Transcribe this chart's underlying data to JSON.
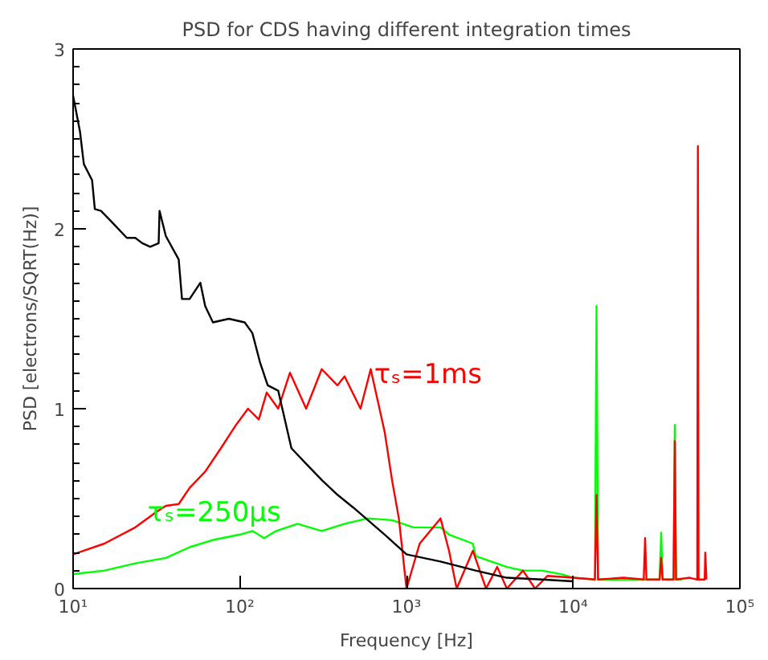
{
  "chart_data": {
    "type": "line",
    "title": "PSD for CDS having different integration times",
    "xlabel": "Frequency [Hz]",
    "ylabel": "PSD [electrons/SQRT(Hz)]",
    "log": "x",
    "xlim": [
      10,
      100000
    ],
    "xticks": [
      {
        "value": 10,
        "label": "10¹"
      },
      {
        "value": 100,
        "label": "10²"
      },
      {
        "value": 1000,
        "label": "10³"
      },
      {
        "value": 10000,
        "label": "10⁴"
      },
      {
        "value": 100000,
        "label": "10⁵"
      }
    ],
    "ylim": [
      0,
      3
    ],
    "yticks": [
      0,
      1,
      2,
      3
    ],
    "grid": false,
    "marker": "none",
    "line_style": "solid",
    "series": [
      {
        "color": "#000000",
        "x": [
          10,
          11,
          11.6,
          13,
          13.5,
          14.7,
          17,
          21,
          23.6,
          26,
          29,
          32.6,
          33,
          36,
          43,
          45,
          50,
          58,
          62,
          69,
          86,
          107,
          119,
          132,
          147,
          170,
          204,
          252,
          313,
          387,
          480,
          740,
          1000,
          1600,
          2600,
          4000,
          6500,
          10000
        ],
        "values": [
          2.74,
          2.54,
          2.36,
          2.27,
          2.11,
          2.1,
          2.04,
          1.95,
          1.95,
          1.92,
          1.9,
          1.92,
          2.1,
          1.96,
          1.83,
          1.61,
          1.61,
          1.7,
          1.57,
          1.48,
          1.5,
          1.48,
          1.42,
          1.26,
          1.13,
          1.1,
          0.78,
          0.69,
          0.6,
          0.52,
          0.45,
          0.3,
          0.19,
          0.15,
          0.1,
          0.06,
          0.05,
          0.04
        ]
      },
      {
        "name": "τₛ=1ms",
        "color": "#ff0000",
        "x": [
          10,
          15.4,
          23.6,
          32,
          36,
          43,
          50,
          62,
          77,
          95,
          112,
          130,
          145,
          170,
          200,
          250,
          310,
          385,
          425,
          530,
          610,
          740,
          820,
          900,
          1000,
          1200,
          1600,
          1800,
          2000,
          2500,
          3000,
          3500,
          4000,
          5000,
          5900,
          7000,
          10000,
          13500,
          13800,
          14100,
          20000,
          26500,
          27000,
          27500,
          33000,
          33700,
          34400,
          40000,
          40700,
          41400,
          50000,
          55500,
          56000,
          56500,
          61500,
          62000,
          63000
        ],
        "values": [
          0.19,
          0.25,
          0.34,
          0.43,
          0.46,
          0.47,
          0.56,
          0.65,
          0.78,
          0.91,
          1.0,
          0.94,
          1.09,
          1.0,
          1.2,
          1.0,
          1.22,
          1.13,
          1.18,
          1.0,
          1.22,
          0.87,
          0.6,
          0.39,
          0,
          0.25,
          0.39,
          0.21,
          0,
          0.21,
          0,
          0.12,
          0,
          0.1,
          0,
          0.07,
          0.06,
          0.05,
          0.52,
          0.05,
          0.06,
          0.05,
          0.28,
          0.05,
          0.05,
          0.17,
          0.05,
          0.05,
          0.82,
          0.05,
          0.06,
          0.05,
          2.46,
          0.05,
          0.05,
          0.2,
          0.05
        ]
      },
      {
        "name": "τₛ=250μs",
        "color": "#00ff00",
        "x": [
          10,
          15.4,
          23.6,
          36,
          50,
          69,
          100,
          119,
          140,
          165,
          222,
          310,
          425,
          585,
          820,
          1100,
          1600,
          1800,
          2500,
          2600,
          4000,
          5000,
          6500,
          8500,
          10000,
          13500,
          13800,
          14100,
          20000,
          33000,
          33700,
          34400,
          40000,
          40700,
          41400,
          45000
        ],
        "values": [
          0.08,
          0.1,
          0.14,
          0.17,
          0.23,
          0.27,
          0.3,
          0.32,
          0.28,
          0.32,
          0.36,
          0.32,
          0.36,
          0.39,
          0.38,
          0.34,
          0.34,
          0.3,
          0.25,
          0.18,
          0.12,
          0.1,
          0.1,
          0.08,
          0.06,
          0.05,
          1.57,
          0.05,
          0.05,
          0.05,
          0.31,
          0.05,
          0.05,
          0.91,
          0.05,
          0.05
        ]
      }
    ]
  }
}
